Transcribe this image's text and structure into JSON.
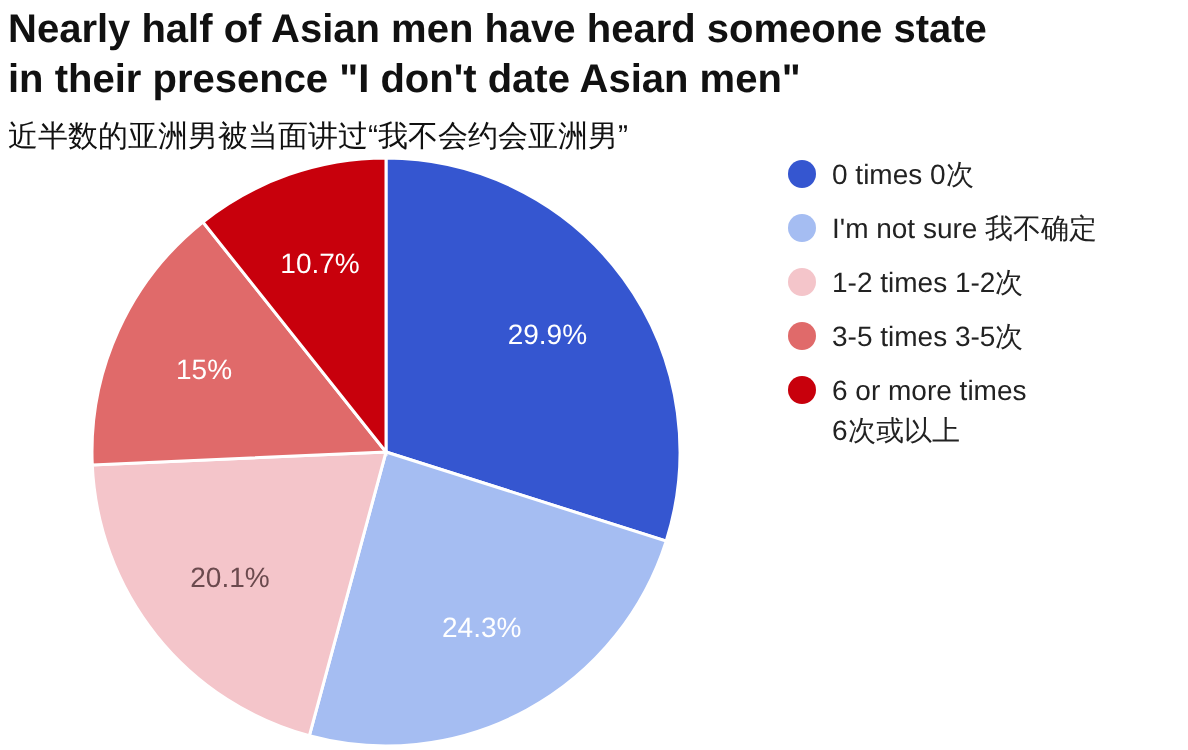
{
  "chart_data": {
    "type": "pie",
    "title": "Nearly half of Asian men have heard someone state in their presence \"I don't date Asian men\"",
    "subtitle": "近半数的亚洲男被当面讲过“我不会约会亚洲男”",
    "categories": [
      "0 times  0次",
      "I'm not sure  我不确定",
      "1-2 times  1-2次",
      "3-5 times  3-5次",
      "6 or more times 6次或以上"
    ],
    "values": [
      29.9,
      24.3,
      20.1,
      15,
      10.7
    ],
    "colors": [
      "#3556d0",
      "#a5bdf2",
      "#f4c5ca",
      "#e06a6a",
      "#c8000c"
    ],
    "value_labels": [
      "29.9%",
      "24.3%",
      "20.1%",
      "15%",
      "10.7%"
    ],
    "legend": "right"
  }
}
